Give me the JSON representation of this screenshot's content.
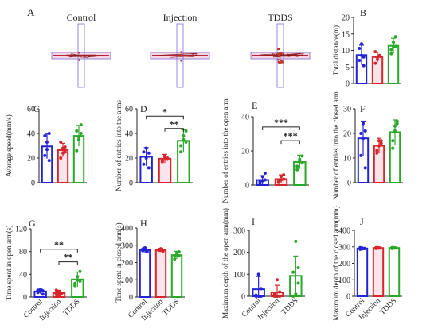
{
  "colors": {
    "control": "#2323d6",
    "injection": "#d6262c",
    "tdds": "#29a829",
    "arena_outline": "#7b6fd6",
    "arena_arm": "#b5273a",
    "arena_fill": "#f6d6e4"
  },
  "panel_a": {
    "letter": "A",
    "labels": [
      "Control",
      "Injection",
      "TDDS"
    ],
    "tracks": [
      "sparse",
      "sparse",
      "dense"
    ]
  },
  "chart_data": [
    {
      "id": "B",
      "letter": "B",
      "type": "bar",
      "categories": [
        "Control",
        "Injection",
        "TDDS"
      ],
      "ylabel": "Total distance(m)",
      "ylim": [
        0,
        20
      ],
      "yticks": [
        0,
        5,
        10,
        15,
        20
      ],
      "values": [
        8.6,
        8.0,
        11.4
      ],
      "sd": [
        3.0,
        1.5,
        2.3
      ],
      "points": [
        [
          10.6,
          12.0,
          5.4,
          7.0,
          8.5,
          8.0
        ],
        [
          6.1,
          7.3,
          8.5,
          9.6,
          8.0,
          8.3
        ],
        [
          9.0,
          12.5,
          14.2,
          10.2,
          11.2,
          11.2
        ]
      ],
      "show_xlabels": false,
      "sig": []
    },
    {
      "id": "C",
      "letter": "C",
      "type": "bar",
      "categories": [
        "Control",
        "Injection",
        "TDDS"
      ],
      "ylabel": "Average speed(mm/s)",
      "ylim": [
        0,
        60
      ],
      "yticks": [
        0,
        20,
        40,
        60
      ],
      "values": [
        29.5,
        26.5,
        38.0
      ],
      "sd": [
        10.0,
        5.5,
        8.5
      ],
      "points": [
        [
          38.0,
          33.0,
          18.0,
          22.0,
          27.0,
          40.0
        ],
        [
          20.0,
          24.0,
          29.0,
          33.0,
          28.0,
          25.0
        ],
        [
          26.0,
          37.0,
          47.0,
          42.0,
          35.0,
          40.0
        ]
      ],
      "show_xlabels": false,
      "sig": []
    },
    {
      "id": "D",
      "letter": "D",
      "type": "bar",
      "categories": [
        "Control",
        "Injection",
        "TDDS"
      ],
      "ylabel": "Number of entries into the arms",
      "ylim": [
        0,
        60
      ],
      "yticks": [
        0,
        20,
        40,
        60
      ],
      "values": [
        21.0,
        19.5,
        34.0
      ],
      "sd": [
        7.5,
        3.5,
        9.0
      ],
      "points": [
        [
          25.0,
          28.0,
          12.0,
          15.0,
          20.0,
          24.0
        ],
        [
          17.0,
          22.0,
          20.0,
          18.0,
          21.0,
          19.0
        ],
        [
          25.0,
          38.0,
          42.0,
          30.0,
          35.0,
          33.0
        ]
      ],
      "show_xlabels": false,
      "sig": [
        {
          "from": 0,
          "to": 2,
          "level": 54,
          "text": "*"
        },
        {
          "from": 1,
          "to": 2,
          "level": 44,
          "text": "**"
        }
      ]
    },
    {
      "id": "E",
      "letter": "E",
      "type": "bar",
      "categories": [
        "Control",
        "Injection",
        "TDDS"
      ],
      "ylabel": "Number of entries into the open arm",
      "ylim": [
        0,
        40
      ],
      "yticks": [
        0,
        20,
        40
      ],
      "values": [
        3.0,
        3.5,
        13.5
      ],
      "sd": [
        2.5,
        2.5,
        4.0
      ],
      "points": [
        [
          2.0,
          5.0,
          7.0,
          1.0,
          2.5,
          3.0
        ],
        [
          2.0,
          5.0,
          6.0,
          1.5,
          3.0,
          3.5
        ],
        [
          9.0,
          14.0,
          17.0,
          11.0,
          15.0,
          13.0
        ]
      ],
      "show_xlabels": false,
      "sig": [
        {
          "from": 0,
          "to": 2,
          "level": 34,
          "text": "***"
        },
        {
          "from": 1,
          "to": 2,
          "level": 26,
          "text": "***"
        }
      ]
    },
    {
      "id": "F",
      "letter": "F",
      "type": "bar",
      "categories": [
        "Control",
        "Injection",
        "TDDS"
      ],
      "ylabel": "Number of entries into the closed arm",
      "ylim": [
        0,
        30
      ],
      "yticks": [
        0,
        10,
        20,
        30
      ],
      "values": [
        18.0,
        15.0,
        20.5
      ],
      "sd": [
        7.0,
        3.0,
        5.0
      ],
      "points": [
        [
          20.0,
          24.0,
          6.0,
          11.0,
          18.0,
          21.0
        ],
        [
          13.0,
          17.0,
          16.0,
          12.0,
          15.0,
          17.0
        ],
        [
          14.0,
          23.0,
          25.0,
          17.0,
          21.0,
          24.0
        ]
      ],
      "show_xlabels": false,
      "sig": []
    },
    {
      "id": "G",
      "letter": "G",
      "type": "bar",
      "categories": [
        "Control",
        "Injection",
        "TDDS"
      ],
      "ylabel": "Time spent in open arm(s)",
      "ylim": [
        0,
        120
      ],
      "yticks": [
        0,
        40,
        80,
        120
      ],
      "values": [
        10.0,
        7.0,
        31.0
      ],
      "sd": [
        4.0,
        5.0,
        13.0
      ],
      "points": [
        [
          8.0,
          13.0,
          5.0,
          12.0,
          10.0,
          11.0
        ],
        [
          4.0,
          10.0,
          6.0,
          12.0,
          3.0,
          7.0
        ],
        [
          20.0,
          36.0,
          45.0,
          24.0,
          30.0,
          28.0
        ]
      ],
      "show_xlabels": true,
      "sig": [
        {
          "from": 0,
          "to": 2,
          "level": 84,
          "text": "**"
        },
        {
          "from": 1,
          "to": 2,
          "level": 62,
          "text": "**"
        }
      ]
    },
    {
      "id": "H",
      "letter": "H",
      "type": "bar",
      "categories": [
        "Control",
        "Injection",
        "TDDS"
      ],
      "ylabel": "Time spent in closed arm(s)",
      "ylim": [
        0,
        400
      ],
      "yticks": [
        0,
        100,
        200,
        300,
        400
      ],
      "values": [
        272.0,
        272.0,
        243.0
      ],
      "sd": [
        15.0,
        10.0,
        22.0
      ],
      "points": [
        [
          278.0,
          285.0,
          262.0,
          268.0,
          275.0,
          265.0
        ],
        [
          270.0,
          280.0,
          265.0,
          275.0,
          270.0,
          272.0
        ],
        [
          220.0,
          255.0,
          262.0,
          238.0,
          245.0,
          240.0
        ]
      ],
      "show_xlabels": true,
      "sig": []
    },
    {
      "id": "I",
      "letter": "I",
      "type": "bar",
      "categories": [
        "Control",
        "Injection",
        "TDDS"
      ],
      "ylabel": "Maximum depth of the open arm(mm)",
      "ylim": [
        0,
        300
      ],
      "yticks": [
        0,
        100,
        200,
        300
      ],
      "values": [
        32.0,
        18.0,
        93.0
      ],
      "sd": [
        58.0,
        32.0,
        90.0
      ],
      "points": [
        [
          0.0,
          0.0,
          0.0,
          5.0,
          100.0,
          35.0
        ],
        [
          0.0,
          0.0,
          0.0,
          10.0,
          75.0,
          20.0
        ],
        [
          0.0,
          10.0,
          60.0,
          110.0,
          250.0,
          130.0
        ]
      ],
      "show_xlabels": true,
      "sig": []
    },
    {
      "id": "J",
      "letter": "J",
      "type": "bar",
      "categories": [
        "Control",
        "Injection",
        "TDDS"
      ],
      "ylabel": "Maximum depth of the closed arm(mm)",
      "ylim": [
        0,
        400
      ],
      "yticks": [
        0,
        100,
        200,
        300,
        400
      ],
      "values": [
        290.0,
        293.0,
        293.0
      ],
      "sd": [
        5.0,
        3.0,
        3.0
      ],
      "points": [
        [
          285.0,
          292.0,
          290.0,
          295.0,
          288.0,
          290.0
        ],
        [
          290.0,
          295.0,
          293.0,
          295.0,
          292.0,
          293.0
        ],
        [
          290.0,
          295.0,
          293.0,
          295.0,
          292.0,
          293.0
        ]
      ],
      "show_xlabels": true,
      "sig": []
    }
  ]
}
